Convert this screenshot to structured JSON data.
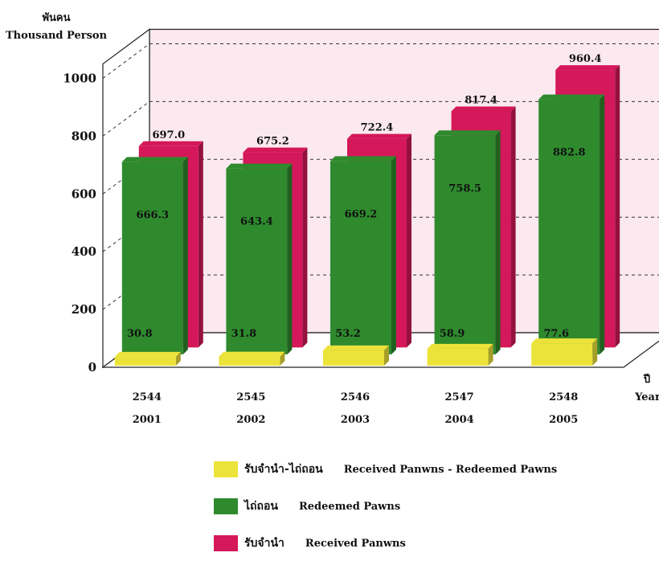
{
  "chart_data": {
    "type": "bar",
    "title": "",
    "ylabel_thai": "พันคน",
    "ylabel": "Thousand Person",
    "xlabel_thai": "ปี",
    "xlabel": "Year",
    "ylim": [
      0,
      1000
    ],
    "yticks": [
      "0",
      "200",
      "400",
      "600",
      "800",
      "1000"
    ],
    "categories": [
      {
        "thai_year": "2544",
        "year": "2001"
      },
      {
        "thai_year": "2545",
        "year": "2002"
      },
      {
        "thai_year": "2546",
        "year": "2003"
      },
      {
        "thai_year": "2547",
        "year": "2004"
      },
      {
        "thai_year": "2548",
        "year": "2005"
      }
    ],
    "series": [
      {
        "name": "Received Panwns - Redeemed Pawns",
        "name_thai": "รับจำนำ-ไถ่ถอน",
        "color": "#ece33a",
        "values": [
          30.8,
          31.8,
          53.2,
          58.9,
          77.6
        ],
        "labels": [
          "30.8",
          "31.8",
          "53.2",
          "58.9",
          "77.6"
        ]
      },
      {
        "name": "Redeemed Pawns",
        "name_thai": "ไถ่ถอน",
        "color": "#2f8a2e",
        "values": [
          666.3,
          643.4,
          669.2,
          758.5,
          882.8
        ],
        "labels": [
          "666.3",
          "643.4",
          "669.2",
          "758.5",
          "882.8"
        ]
      },
      {
        "name": "Received Panwns",
        "name_thai": "รับจำนำ",
        "color": "#d4185a",
        "values": [
          697.0,
          675.2,
          722.4,
          817.4,
          960.4
        ],
        "labels": [
          "697.0",
          "675.2",
          "722.4",
          "817.4",
          "960.4"
        ]
      }
    ],
    "legend_position": "bottom",
    "grid": true
  }
}
